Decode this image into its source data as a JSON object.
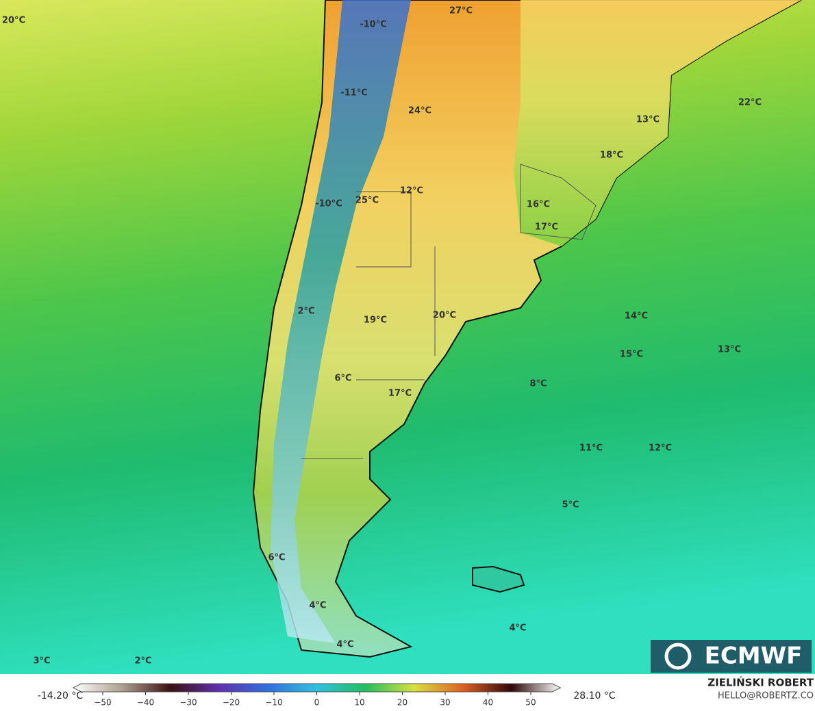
{
  "map": {
    "labels": [
      "20°C",
      "-10°C",
      "27°C",
      "-11°C",
      "24°C",
      "22°C",
      "13°C",
      "18°C",
      "12°C",
      "25°C",
      "-10°C",
      "16°C",
      "17°C",
      "2°C",
      "19°C",
      "20°C",
      "14°C",
      "15°C",
      "13°C",
      "6°C",
      "17°C",
      "8°C",
      "11°C",
      "12°C",
      "5°C",
      "6°C",
      "4°C",
      "4°C",
      "4°C",
      "3°C",
      "2°C"
    ]
  },
  "colorbar": {
    "min_label": "-14.20 °C",
    "max_label": "28.10 °C",
    "xlim": [
      -55,
      55
    ],
    "ticks": [
      {
        "value": -50,
        "label": "−50"
      },
      {
        "value": -40,
        "label": "−40"
      },
      {
        "value": -30,
        "label": "−30"
      },
      {
        "value": -20,
        "label": "−20"
      },
      {
        "value": -10,
        "label": "−10"
      },
      0,
      10,
      20,
      30,
      40,
      50
    ]
  },
  "credit": {
    "name": "ZIELIŃSKI ROBERT",
    "email": "HELLO@ROBERTZ.CO"
  },
  "logo": "ECMWF"
}
